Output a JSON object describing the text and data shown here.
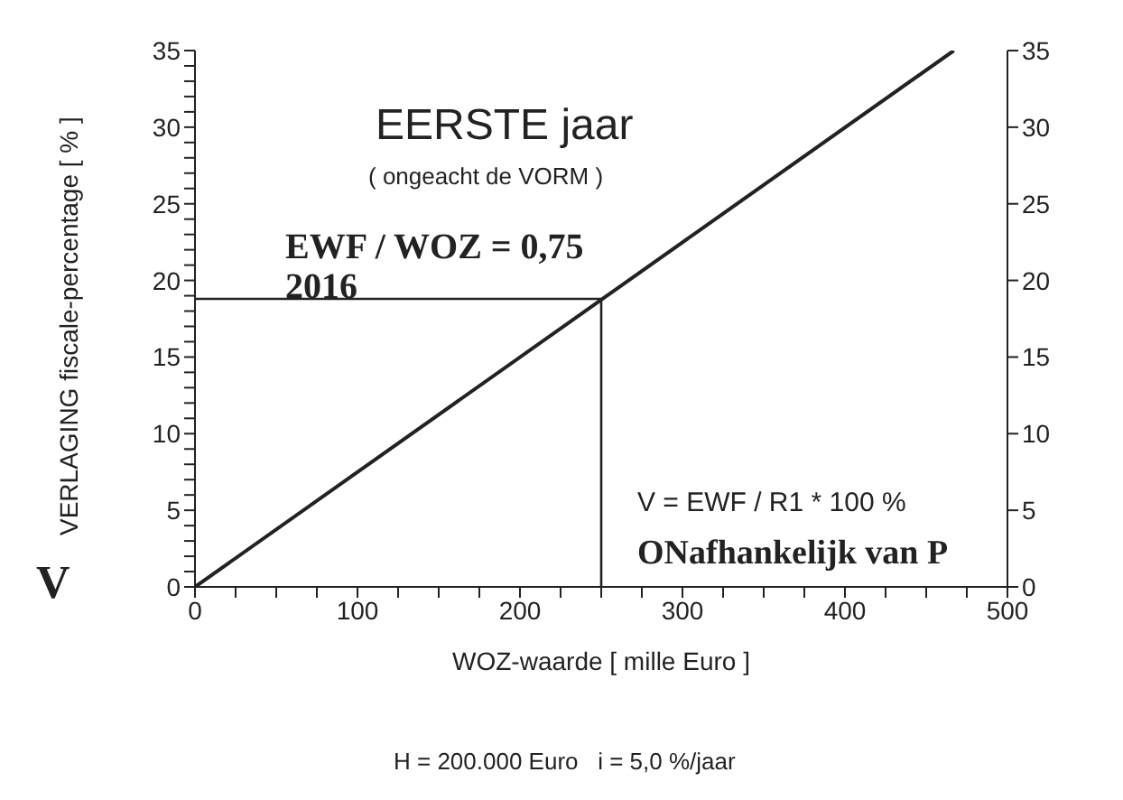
{
  "chart_data": {
    "type": "line",
    "xlabel": "WOZ-waarde [ mille Euro ]",
    "ylabel": "VERLAGING fiscale-percentage [ % ]",
    "series": [
      {
        "color": "#222222",
        "x": [
          0,
          467
        ],
        "values": [
          0,
          35
        ]
      },
      {
        "color": "#222222",
        "x": [
          0,
          250,
          250
        ],
        "values": [
          18.8,
          18.8,
          0
        ]
      }
    ],
    "xlim": [
      0,
      500
    ],
    "xticks": [
      0,
      {
        "value": 25,
        "label": null
      },
      100,
      {
        "value": 50,
        "label": null
      },
      {
        "value": 75,
        "label": null
      },
      {
        "value": 125,
        "label": null
      },
      {
        "value": 150,
        "label": null
      },
      {
        "value": 175,
        "label": null
      },
      200,
      {
        "value": 225,
        "label": null
      },
      {
        "value": 250,
        "label": null
      },
      {
        "value": 275,
        "label": null
      },
      300,
      {
        "value": 325,
        "label": null
      },
      {
        "value": 350,
        "label": null
      },
      {
        "value": 375,
        "label": null
      },
      400,
      {
        "value": 425,
        "label": null
      },
      {
        "value": 450,
        "label": null
      },
      {
        "value": 475,
        "label": null
      },
      500
    ],
    "ylim": [
      0,
      35
    ],
    "yticks": [
      0,
      {
        "value": 1,
        "label": null
      },
      {
        "value": 2,
        "label": null
      },
      {
        "value": 3,
        "label": null
      },
      {
        "value": 4,
        "label": null
      },
      5,
      {
        "value": 6,
        "label": null
      },
      {
        "value": 7,
        "label": null
      },
      {
        "value": 8,
        "label": null
      },
      {
        "value": 9,
        "label": null
      },
      10,
      {
        "value": 11,
        "label": null
      },
      {
        "value": 12,
        "label": null
      },
      {
        "value": 13,
        "label": null
      },
      {
        "value": 14,
        "label": null
      },
      15,
      {
        "value": 16,
        "label": null
      },
      {
        "value": 17,
        "label": null
      },
      {
        "value": 18,
        "label": null
      },
      {
        "value": 19,
        "label": null
      },
      20,
      {
        "value": 21,
        "label": null
      },
      {
        "value": 22,
        "label": null
      },
      {
        "value": 23,
        "label": null
      },
      {
        "value": 24,
        "label": null
      },
      25,
      {
        "value": 26,
        "label": null
      },
      {
        "value": 27,
        "label": null
      },
      {
        "value": 28,
        "label": null
      },
      {
        "value": 29,
        "label": null
      },
      30,
      {
        "value": 31,
        "label": null
      },
      {
        "value": 32,
        "label": null
      },
      {
        "value": 33,
        "label": null
      },
      {
        "value": 34,
        "label": null
      },
      35
    ],
    "y2lim": [
      0,
      35
    ],
    "y2ticks": [
      0,
      5,
      10,
      15,
      20,
      25,
      30,
      35
    ],
    "marker": "none",
    "line_style": "solid",
    "annotations": [
      "V",
      "EERSTE jaar",
      "( ongeacht de VORM )",
      "EWF / WOZ = 0,75",
      "2016",
      "V = EWF / R1 * 100 %",
      "ONafhankelijk van P",
      "H = 200.000 Euro   i = 5,0 %/jaar"
    ]
  }
}
